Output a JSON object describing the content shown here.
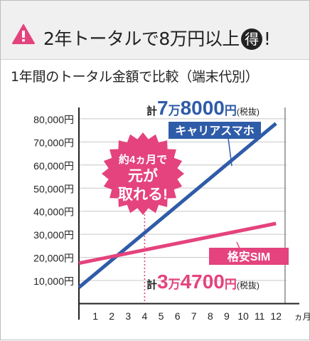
{
  "header": {
    "headline_before": "2年トータルで8万円以上",
    "headline_circle": "得",
    "headline_after": "!",
    "warning_icon": "warning-triangle-icon",
    "warning_color": "#e4437d"
  },
  "chart_data": {
    "type": "line",
    "title": "1年間のトータル金額で比較（端末代別）",
    "x": [
      0,
      1,
      2,
      3,
      4,
      5,
      6,
      7,
      8,
      9,
      10,
      11,
      12
    ],
    "x_tick_labels": [
      "1",
      "2",
      "3",
      "4",
      "5",
      "6",
      "7",
      "8",
      "9",
      "10",
      "11",
      "12"
    ],
    "x_unit": "ヵ月",
    "y_tick_labels": [
      "10,000円",
      "20,000円",
      "30,000円",
      "40,000円",
      "50,000円",
      "60,000円",
      "70,000円",
      "80,000円"
    ],
    "ylim": [
      5000,
      85000
    ],
    "xlim": [
      0,
      12.5
    ],
    "grid": true,
    "series": [
      {
        "name": "キャリアスマホ",
        "color": "#2f5ca8",
        "points": [
          [
            0,
            7000
          ],
          [
            12,
            78000
          ]
        ]
      },
      {
        "name": "格安SIM",
        "color": "#e4437d",
        "points": [
          [
            0,
            17500
          ],
          [
            12,
            34700
          ]
        ]
      }
    ],
    "annotations": {
      "total_prefix": "計",
      "total_suffix": "(税抜)",
      "carrier_total_man": "7",
      "carrier_total_rest": "8000",
      "mvno_total_man": "3",
      "mvno_total_rest": "4700",
      "man_char": "万",
      "yen_char": "円",
      "callout_lines": [
        "約4ヵ月で",
        "元が",
        "取れる!"
      ],
      "callout_color": "#e4437d",
      "breakeven_x": 4
    }
  }
}
